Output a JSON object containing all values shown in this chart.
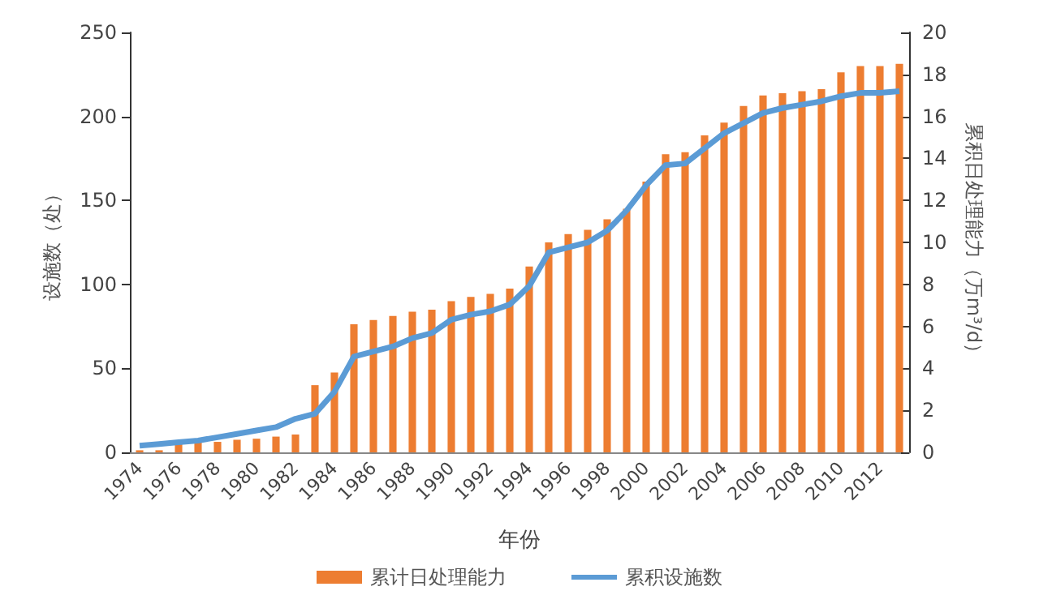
{
  "chart_data": {
    "type": "bar",
    "xlabel": "年份",
    "ylabel": "设施数（处）",
    "y2label": "累积日处理能力（万m³/d）",
    "categories": [
      "1974",
      null,
      "1976",
      null,
      "1978",
      null,
      "1980",
      null,
      "1982",
      null,
      "1984",
      null,
      "1986",
      null,
      "1988",
      null,
      "1990",
      null,
      "1992",
      null,
      "1994",
      null,
      "1996",
      null,
      "1998",
      null,
      "2000",
      null,
      "2002",
      null,
      "2004",
      null,
      "2006",
      null,
      "2008",
      null,
      "2010",
      null,
      "2012",
      null
    ],
    "series": [
      {
        "name": "累计日处理能力",
        "axis": "y2",
        "color": "#ed7d31",
        "values": [
          0.1,
          0.1,
          0.4,
          0.5,
          0.5,
          0.6,
          0.65,
          0.75,
          0.85,
          3.2,
          3.8,
          6.1,
          6.3,
          6.5,
          6.7,
          6.8,
          7.2,
          7.4,
          7.55,
          7.8,
          8.85,
          10.0,
          10.4,
          10.6,
          11.1,
          11.6,
          12.9,
          14.2,
          14.3,
          15.1,
          15.7,
          16.5,
          17.0,
          17.1,
          17.2,
          17.3,
          18.1,
          18.4,
          18.4,
          18.5
        ]
      },
      {
        "name": "累积设施数",
        "type": "line",
        "axis": "y",
        "color": "#5b9bd5",
        "values": [
          4,
          5,
          6,
          7,
          9,
          11,
          13,
          15,
          20,
          23,
          36,
          57,
          60,
          63,
          68,
          71,
          79,
          82,
          84,
          88,
          99,
          119,
          122,
          125,
          132,
          144,
          159,
          171,
          172,
          181,
          190,
          196,
          202,
          205,
          207,
          209,
          212,
          214,
          214,
          215
        ]
      }
    ],
    "ylim": [
      0,
      250
    ],
    "yticks": [
      0,
      50,
      100,
      150,
      200,
      250
    ],
    "y2lim": [
      0,
      20
    ],
    "y2ticks": [
      0,
      2,
      4,
      6,
      8,
      10,
      12,
      14,
      16,
      18,
      20
    ],
    "grid": false,
    "legend": "bottom",
    "marker": "none",
    "line_style": "solid"
  }
}
